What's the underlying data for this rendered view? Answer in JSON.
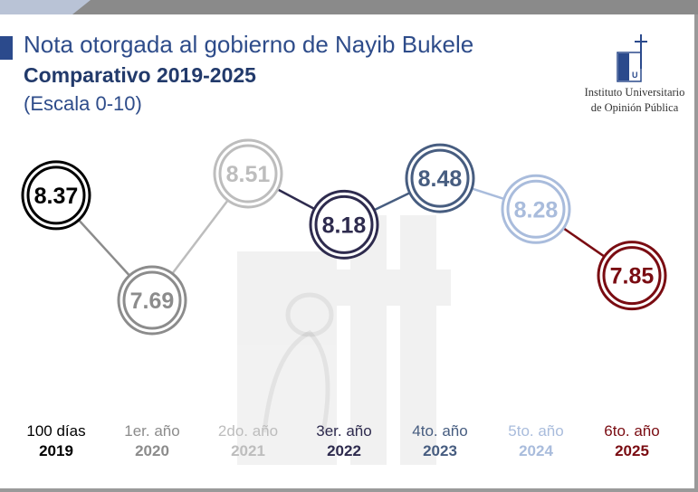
{
  "header": {
    "title": "Nota otorgada al gobierno de Nayib Bukele",
    "subtitle": "Comparativo 2019-2025",
    "scale_note": "(Escala 0-10)"
  },
  "logo": {
    "line1": "Instituto Universitario",
    "line2": "de Opinión Pública"
  },
  "colors": {
    "title_blue": "#2e4c8a",
    "accent": "#2b4a8c",
    "gray": "#999999"
  },
  "chart_data": {
    "type": "line",
    "title": "Nota otorgada al gobierno de Nayib Bukele",
    "subtitle": "Comparativo 2019-2025",
    "categories": [
      {
        "period": "100 días",
        "year": "2019",
        "value": 8.37,
        "label": "8.37",
        "color": "#000000"
      },
      {
        "period": "1er. año",
        "year": "2020",
        "value": 7.69,
        "label": "7.69",
        "color": "#8c8c8c"
      },
      {
        "period": "2do. año",
        "year": "2021",
        "value": 8.51,
        "label": "8.51",
        "color": "#bdbdbd"
      },
      {
        "period": "3er. año",
        "year": "2022",
        "value": 8.18,
        "label": "8.18",
        "color": "#2e2b4e"
      },
      {
        "period": "4to. año",
        "year": "2023",
        "value": 8.48,
        "label": "8.48",
        "color": "#475d80"
      },
      {
        "period": "5to. año",
        "year": "2024",
        "value": 8.28,
        "label": "8.28",
        "color": "#a9bcdc"
      },
      {
        "period": "6to. año",
        "year": "2025",
        "value": 7.85,
        "label": "7.85",
        "color": "#7a0c12"
      }
    ],
    "ylim": [
      7.5,
      8.6
    ],
    "grid": false,
    "legend": "none"
  }
}
